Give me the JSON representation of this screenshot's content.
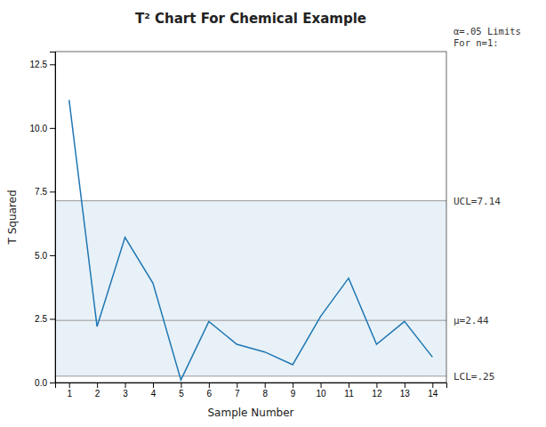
{
  "chart_data": {
    "type": "line",
    "title": "T² Chart For Chemical Example",
    "x_label": "Sample Number",
    "y_label": "T Squared",
    "x": [
      1,
      2,
      3,
      4,
      5,
      6,
      7,
      8,
      9,
      10,
      11,
      12,
      13,
      14
    ],
    "values": [
      11.1,
      2.2,
      5.7,
      3.9,
      0.1,
      2.4,
      1.5,
      1.2,
      0.7,
      2.6,
      4.1,
      1.5,
      2.4,
      1.0
    ],
    "reference_lines": [
      {
        "value": 7.14,
        "label": "UCL=7.14"
      },
      {
        "value": 2.44,
        "label": "μ=2.44"
      },
      {
        "value": 0.25,
        "label": "LCL=.25"
      }
    ],
    "shaded_range": [
      0.25,
      7.14
    ],
    "annotation": "α=.05 Limits\nFor n=1:",
    "xlim": [
      0.5,
      14.5
    ],
    "xticks": [
      1,
      2,
      3,
      4,
      5,
      6,
      7,
      8,
      9,
      10,
      11,
      12,
      13,
      14
    ],
    "ylim": [
      0,
      13.0
    ],
    "yticks": [
      {
        "value": 0,
        "label": "0.0"
      },
      2.5,
      {
        "value": 5.0,
        "label": "5.0"
      },
      7.5,
      {
        "value": 10.0,
        "label": "10.0"
      },
      12.5
    ],
    "grid": false
  }
}
